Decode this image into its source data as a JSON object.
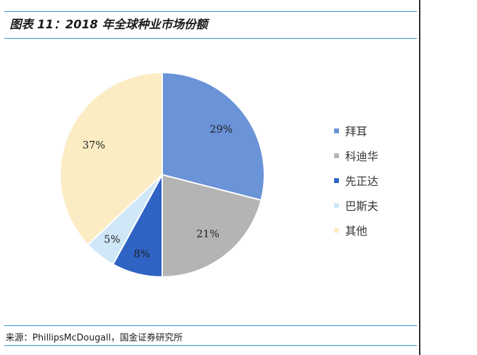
{
  "header": {
    "title": "图表 11：2018 年全球种业市场份额"
  },
  "source": {
    "text": "来源：PhillipsMcDougall，国金证券研究所"
  },
  "chart_data": {
    "type": "pie",
    "title": "",
    "unit": "%",
    "slices": [
      {
        "label": "拜耳",
        "value": 29,
        "display": "29%",
        "color": "#6a93d8"
      },
      {
        "label": "科迪华",
        "value": 21,
        "display": "21%",
        "color": "#b4b4b4"
      },
      {
        "label": "先正达",
        "value": 8,
        "display": "8%",
        "color": "#2f63c4"
      },
      {
        "label": "巴斯夫",
        "value": 5,
        "display": "5%",
        "color": "#cfe7f7"
      },
      {
        "label": "其他",
        "value": 37,
        "display": "37%",
        "color": "#fbecc4"
      }
    ],
    "start": "12 o'clock",
    "direction": "clockwise",
    "legend_position": "right"
  }
}
